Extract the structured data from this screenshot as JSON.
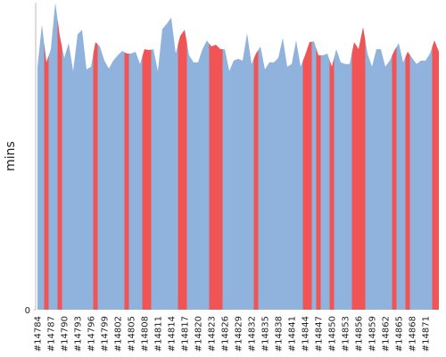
{
  "chart_data": {
    "type": "area",
    "y_label": "mins",
    "categories": [
      "#14784",
      null,
      null,
      "#14787",
      null,
      null,
      "#14790",
      null,
      null,
      "#14793",
      null,
      null,
      "#14796",
      null,
      null,
      "#14799",
      null,
      null,
      "#14802",
      null,
      null,
      "#14805",
      null,
      null,
      "#14808",
      null,
      null,
      "#14811",
      null,
      null,
      "#14814",
      null,
      null,
      "#14817",
      null,
      null,
      "#14820",
      null,
      null,
      "#14823",
      null,
      null,
      "#14826",
      null,
      null,
      "#14829",
      null,
      null,
      "#14832",
      null,
      null,
      "#14835",
      null,
      null,
      "#14838",
      null,
      null,
      "#14841",
      null,
      null,
      "#14844",
      null,
      null,
      "#14847",
      null,
      null,
      "#14850",
      null,
      null,
      "#14853",
      null,
      null,
      "#14856",
      null,
      null,
      "#14859",
      null,
      null,
      "#14862",
      null,
      null,
      "#14865",
      null,
      null,
      "#14868",
      null,
      null,
      "#14871",
      null,
      null,
      null
    ],
    "values": [
      27.7,
      32.5,
      28.2,
      29.7,
      35,
      31.2,
      28.7,
      30.4,
      27.2,
      31.4,
      31.9,
      27.4,
      27.7,
      30.5,
      30.0,
      28.4,
      27.5,
      28.4,
      29.0,
      29.5,
      29.2,
      29.2,
      29.4,
      28.0,
      29.7,
      29.6,
      29.7,
      27.2,
      32.0,
      32.6,
      33.3,
      29.2,
      31.2,
      31.9,
      29.0,
      28.2,
      28.2,
      29.7,
      30.7,
      30.0,
      30.2,
      29.7,
      29.7,
      27.2,
      28.4,
      28.6,
      28.4,
      31.5,
      28.0,
      29.2,
      30.0,
      27.4,
      28.2,
      28.2,
      28.7,
      31.0,
      27.7,
      28.0,
      30.7,
      27.7,
      29.0,
      30.5,
      30.6,
      29.0,
      29.0,
      29.2,
      27.7,
      29.7,
      28.2,
      28.0,
      28.0,
      30.5,
      29.7,
      32.2,
      29.2,
      27.7,
      29.7,
      29.7,
      27.7,
      28.4,
      29.5,
      30.4,
      28.2,
      29.4,
      28.7,
      28.0,
      28.4,
      28.4,
      29.2,
      30.7,
      29.4
    ],
    "failed": [
      false,
      false,
      true,
      false,
      false,
      true,
      false,
      false,
      false,
      false,
      false,
      false,
      false,
      true,
      false,
      false,
      false,
      false,
      false,
      false,
      true,
      false,
      false,
      false,
      true,
      true,
      false,
      false,
      false,
      false,
      false,
      false,
      true,
      true,
      false,
      false,
      false,
      false,
      false,
      true,
      true,
      true,
      false,
      false,
      false,
      false,
      false,
      false,
      false,
      true,
      false,
      false,
      false,
      false,
      false,
      false,
      false,
      false,
      false,
      false,
      true,
      true,
      false,
      true,
      false,
      false,
      true,
      false,
      false,
      false,
      false,
      true,
      true,
      true,
      false,
      false,
      false,
      false,
      false,
      false,
      true,
      false,
      false,
      true,
      false,
      false,
      false,
      false,
      false,
      true,
      true
    ],
    "color": "#8fb3dc",
    "failed_color": "#f05454",
    "ylim": [
      0,
      35
    ],
    "yticks": [
      0
    ]
  }
}
